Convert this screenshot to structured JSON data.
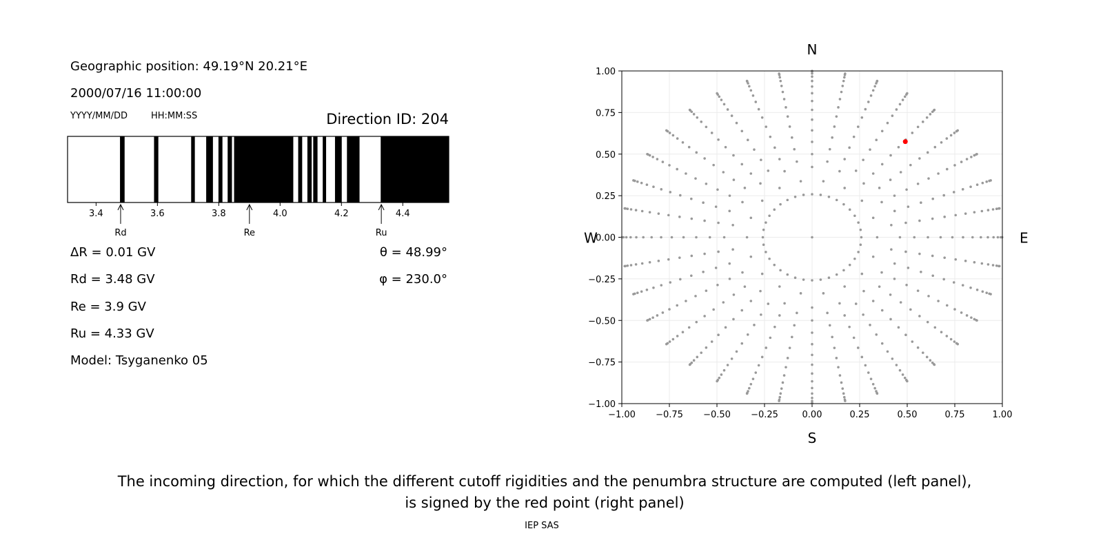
{
  "left_panel": {
    "geo_position": "Geographic position: 49.19°N 20.21°E",
    "datetime": "2000/07/16 11:00:00",
    "date_format": "YYYY/MM/DD",
    "time_format": "HH:MM:SS",
    "direction_id": "Direction ID: 204",
    "delta_r": "ΔR = 0.01 GV",
    "rd": "Rd = 3.48 GV",
    "re": "Re = 3.9 GV",
    "ru": "Ru = 4.33 GV",
    "model": "Model: Tsyganenko 05",
    "theta": "θ = 48.99°",
    "phi": "φ = 230.0°"
  },
  "caption": {
    "line1": "The incoming direction, for which the different cutoff rigidities and the penumbra structure are computed (left panel),",
    "line2": "is signed by the red point (right panel)",
    "footer": "IEP SAS"
  },
  "chart_data": [
    {
      "type": "bar",
      "xlim": [
        3.307,
        4.55
      ],
      "xticks": [
        "3.4",
        "3.6",
        "3.8",
        "4.0",
        "4.2",
        "4.4"
      ],
      "forbidden_color": "#000000",
      "allowed_color": "#ffffff",
      "forbidden_bands": [
        [
          3.478,
          3.493
        ],
        [
          3.589,
          3.603
        ],
        [
          3.71,
          3.722
        ],
        [
          3.759,
          3.781
        ],
        [
          3.799,
          3.812
        ],
        [
          3.829,
          3.843
        ],
        [
          3.85,
          4.043
        ],
        [
          4.059,
          4.072
        ],
        [
          4.089,
          4.103
        ],
        [
          4.108,
          4.122
        ],
        [
          4.139,
          4.15
        ],
        [
          4.179,
          4.201
        ],
        [
          4.218,
          4.259
        ],
        [
          4.328,
          4.55
        ]
      ],
      "markers": [
        {
          "label": "Rd",
          "value": 3.48
        },
        {
          "label": "Re",
          "value": 3.9
        },
        {
          "label": "Ru",
          "value": 4.33
        }
      ]
    },
    {
      "type": "scatter",
      "xlim": [
        -1,
        1
      ],
      "ylim": [
        -1,
        1
      ],
      "xticks": [
        "−1.00",
        "−0.75",
        "−0.50",
        "−0.25",
        "0.00",
        "0.25",
        "0.50",
        "0.75",
        "1.00"
      ],
      "yticks": [
        "−1.00",
        "−0.75",
        "−0.50",
        "−0.25",
        "0.00",
        "0.25",
        "0.50",
        "0.75",
        "1.00"
      ],
      "grid": true,
      "compass": {
        "n": "N",
        "s": "S",
        "e": "E",
        "w": "W"
      },
      "point_color": "#999999",
      "highlight_color": "#ff0000",
      "azimuth_step_deg": 10,
      "zenith_ring_deg": 15,
      "zenith_angles_even_spokes_deg": [
        25,
        30,
        35,
        40,
        45,
        50,
        55,
        60,
        65,
        70,
        75,
        80,
        85,
        90
      ],
      "zenith_angles_odd_spokes_deg": [
        20,
        27.5,
        32.5,
        37.5,
        42.5,
        47.5,
        52.5,
        57.5,
        62.5,
        67.5,
        72.5,
        77.5,
        82.5,
        87.5
      ],
      "highlight_point": {
        "x": 0.49,
        "y": 0.575
      }
    }
  ]
}
